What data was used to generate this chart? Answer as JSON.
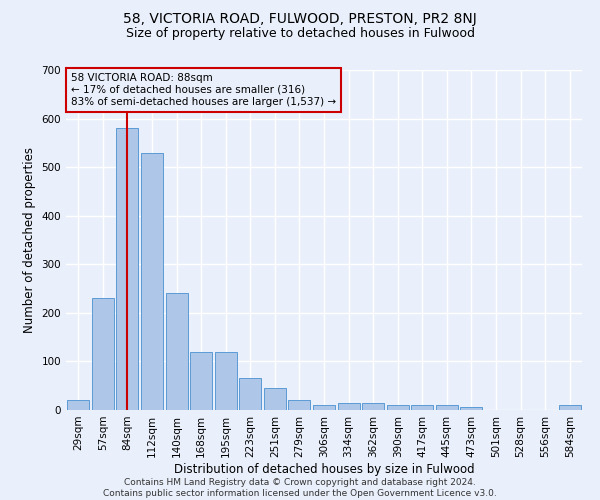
{
  "title": "58, VICTORIA ROAD, FULWOOD, PRESTON, PR2 8NJ",
  "subtitle": "Size of property relative to detached houses in Fulwood",
  "xlabel": "Distribution of detached houses by size in Fulwood",
  "ylabel": "Number of detached properties",
  "footer_line1": "Contains HM Land Registry data © Crown copyright and database right 2024.",
  "footer_line2": "Contains public sector information licensed under the Open Government Licence v3.0.",
  "annotation_title": "58 VICTORIA ROAD: 88sqm",
  "annotation_line1": "← 17% of detached houses are smaller (316)",
  "annotation_line2": "83% of semi-detached houses are larger (1,537) →",
  "bar_labels": [
    "29sqm",
    "57sqm",
    "84sqm",
    "112sqm",
    "140sqm",
    "168sqm",
    "195sqm",
    "223sqm",
    "251sqm",
    "279sqm",
    "306sqm",
    "334sqm",
    "362sqm",
    "390sqm",
    "417sqm",
    "445sqm",
    "473sqm",
    "501sqm",
    "528sqm",
    "556sqm",
    "584sqm"
  ],
  "bar_heights": [
    20,
    230,
    580,
    530,
    240,
    120,
    120,
    65,
    45,
    20,
    10,
    15,
    15,
    10,
    10,
    10,
    7,
    0,
    0,
    0,
    10
  ],
  "bar_color": "#aec6e8",
  "bar_edge_color": "#5b9bd5",
  "vline_color": "#cc0000",
  "vline_x": 2.0,
  "annotation_box_color": "#cc0000",
  "ylim": [
    0,
    700
  ],
  "yticks": [
    0,
    100,
    200,
    300,
    400,
    500,
    600,
    700
  ],
  "bg_color": "#eaf0fb",
  "grid_color": "#ffffff",
  "title_fontsize": 10,
  "subtitle_fontsize": 9,
  "axis_label_fontsize": 8.5,
  "tick_fontsize": 7.5,
  "footer_fontsize": 6.5,
  "annotation_fontsize": 7.5
}
